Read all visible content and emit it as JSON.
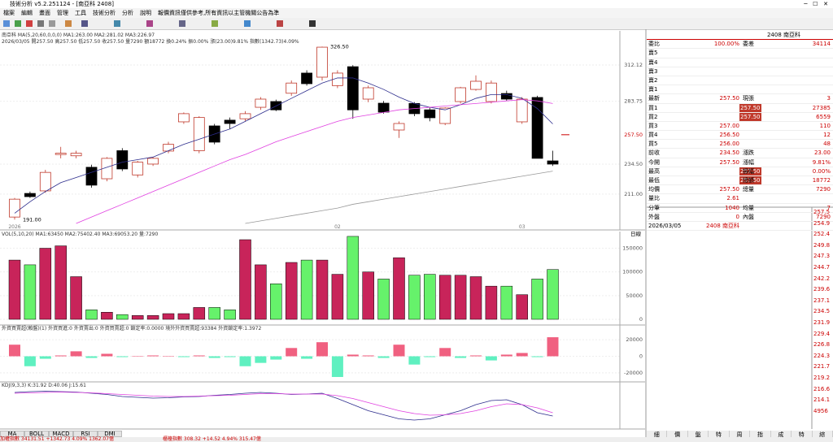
{
  "window_title": "技術分析 v5.2.251124 - [南亞科 2408]",
  "menu": [
    "檔案",
    "編輯",
    "畫面",
    "管理",
    "工具",
    "技術分析",
    "分析",
    "說明"
  ],
  "notice": "報價資訊僅供參考,所有資訊以主管機關公告為準",
  "info": {
    "line1": "南亞科 MA(5,20,60,0,0,0) MA1:263.00 MA2:281.02 MA3:226.97",
    "line2": "2026/03/05 開257.50 高257.50 低257.50 收257.50 量7290 額18772 換0.24% 振0.00% 漲(23.00)9.81% 指數(1342.73)4.09%"
  },
  "price_chart": {
    "ylim": [
      188,
      337.6
    ],
    "yticks": [
      312.12,
      283.75,
      {
        "value": 234.5,
        "label": "234.50"
      },
      {
        "value": 211,
        "label": "211.00"
      }
    ],
    "current": {
      "value": 257.5,
      "label": "257.50"
    },
    "high_label": "326.50",
    "low_label": "191.00",
    "x_labels": [
      "2026",
      null,
      null,
      null,
      null,
      null,
      null,
      null,
      null,
      null,
      null,
      null,
      null,
      null,
      null,
      null,
      null,
      null,
      null,
      null,
      null,
      "02",
      null,
      null,
      null,
      null,
      null,
      null,
      null,
      null,
      null,
      null,
      null,
      "03",
      null,
      null
    ],
    "open": [
      193,
      211.5,
      213.5,
      242,
      241,
      232,
      223,
      245,
      226,
      234.5,
      244.7,
      267.6,
      245,
      264.4,
      268.9,
      270,
      279,
      283.5,
      290,
      305.8,
      302.6,
      296,
      310.8,
      285.4,
      282.2,
      261.2,
      282,
      277,
      266.3,
      283.5,
      293,
      283.5,
      289.8,
      267.6,
      286.7,
      237
    ],
    "high": [
      208,
      213,
      230,
      248,
      245,
      234,
      240,
      247,
      237,
      240,
      252,
      275,
      272,
      266,
      271,
      276,
      287,
      285,
      300,
      308,
      326.5,
      308,
      312,
      296,
      284,
      268,
      283,
      279,
      279,
      295,
      304,
      300,
      292,
      287,
      288,
      245
    ],
    "low": [
      191,
      208,
      212,
      239,
      239,
      216,
      221,
      229,
      224,
      233,
      243,
      266,
      243,
      250,
      262,
      268,
      277,
      276,
      288,
      296,
      300,
      294,
      270,
      283,
      274,
      255,
      272,
      268,
      265,
      282,
      292,
      282,
      284,
      266,
      239,
      233
    ],
    "close": [
      207,
      209,
      228,
      243,
      243,
      218,
      239,
      230.7,
      236,
      239,
      250,
      274,
      271,
      251.7,
      266.3,
      274,
      285.4,
      277,
      298,
      297.5,
      326.1,
      305.8,
      277,
      294.3,
      275.2,
      266.3,
      274,
      270.8,
      278.4,
      294.3,
      299.4,
      298,
      285.4,
      285.4,
      239,
      234.5
    ],
    "up_color": "#c0392b",
    "down_color": "#000000",
    "ma": [
      {
        "color": "#2c2c8c",
        "values": [
          196,
          205,
          213,
          220,
          224,
          228,
          232,
          236,
          238,
          240,
          245,
          250,
          254,
          258,
          262,
          268,
          274,
          280,
          286,
          292,
          298,
          302,
          302,
          298,
          293,
          287,
          282,
          279,
          277,
          281,
          286,
          289,
          289,
          286,
          278,
          266
        ]
      },
      {
        "color": "#e040e0",
        "values": [
          null,
          null,
          null,
          null,
          188,
          193,
          198,
          203,
          208,
          213,
          218,
          223,
          228,
          233,
          238,
          242,
          247,
          252,
          256,
          260,
          264,
          268,
          271,
          273,
          275,
          277,
          278,
          279,
          280,
          281,
          282,
          283,
          284,
          285,
          284,
          282
        ]
      },
      {
        "color": "#999999",
        "values": [
          null,
          null,
          null,
          null,
          null,
          null,
          null,
          null,
          null,
          null,
          null,
          null,
          null,
          null,
          null,
          188,
          190,
          192,
          194,
          196,
          198,
          200,
          203,
          205,
          207,
          209,
          211,
          213,
          215,
          217,
          219,
          221,
          223,
          225,
          227,
          229
        ]
      }
    ]
  },
  "volume_chart": {
    "header": "VOL(5,10,20) MA1:63450 MA2:75402.40 MA3:69053.20 量:7290",
    "period": "日線",
    "ylim": [
      0,
      180000
    ],
    "yticks": [
      150000,
      100000,
      50000,
      0
    ],
    "values": [
      125000,
      115000,
      150000,
      155000,
      90000,
      20000,
      15000,
      10000,
      8000,
      8000,
      12000,
      12000,
      25000,
      25000,
      20000,
      168000,
      115000,
      75000,
      120000,
      125000,
      125000,
      95000,
      175000,
      100000,
      85000,
      130000,
      93000,
      95000,
      93000,
      93000,
      90000,
      70000,
      70000,
      52000,
      85000,
      105000
    ],
    "up_color": "#c8245a",
    "down_color": "#66f26b"
  },
  "foreign_chart": {
    "header": "外資買賣超(賴盤)(1) 外資買進:0 外資賣出:0 外資買賣超:0 鎖定率:0.0000 境外外資買賣超:93384 外資鎖定率:1.3972",
    "ylim": [
      -26000,
      26000
    ],
    "yticks": [
      20000,
      0,
      -20000
    ],
    "values": [
      14000,
      -12000,
      -3000,
      1000,
      6000,
      -2000,
      3000,
      -1000,
      0,
      1000,
      0,
      -1000,
      1000,
      -2000,
      -1000,
      -12000,
      -8000,
      -4000,
      10000,
      -3000,
      17000,
      -25000,
      2000,
      1000,
      -2000,
      14000,
      -10000,
      -1000,
      10000,
      -2000,
      1000,
      -5000,
      2000,
      4000,
      -1000,
      23000
    ],
    "pos_color": "#f06080",
    "neg_color": "#5ff0c0"
  },
  "kd_chart": {
    "header": "KDJ(9,3,3) K:31.92 D:40.06 J:15.61",
    "ylim": [
      0,
      100
    ],
    "series": [
      {
        "color": "#2c2c8c",
        "values": [
          90,
          92,
          93,
          92,
          91,
          88,
          85,
          80,
          78,
          76,
          77,
          79,
          80,
          83,
          85,
          88,
          90,
          88,
          85,
          86,
          88,
          75,
          60,
          45,
          35,
          25,
          22,
          25,
          35,
          45,
          60,
          70,
          72,
          60,
          40,
          32
        ]
      },
      {
        "color": "#e040e0",
        "values": [
          88,
          89,
          90,
          91,
          90,
          89,
          87,
          85,
          83,
          81,
          80,
          80,
          81,
          82,
          83,
          85,
          87,
          87,
          86,
          86,
          86,
          82,
          75,
          65,
          55,
          45,
          38,
          34,
          35,
          38,
          45,
          55,
          62,
          60,
          52,
          40
        ]
      }
    ]
  },
  "indicator_tabs": [
    "MA",
    "BOLL",
    "MACD",
    "RSI",
    "DMI"
  ],
  "quote": {
    "header": "2408 南亞科",
    "rows": [
      {
        "l": "委比",
        "v": "100.00%",
        "l2": "委差",
        "v2": "34114"
      },
      {
        "l": "賣5"
      },
      {
        "l": "賣4"
      },
      {
        "l": "賣3"
      },
      {
        "l": "賣2"
      },
      {
        "l": "賣1"
      },
      {
        "l": "最新",
        "v": "257.50",
        "l2": "現張",
        "v2": "3"
      },
      {
        "l": "買1",
        "v": "257.50",
        "hl": true,
        "v2": "27385"
      },
      {
        "l": "買2",
        "v": "257.50",
        "hl": true,
        "v2": "6559"
      },
      {
        "l": "買3",
        "v": "257.00",
        "v2": "110"
      },
      {
        "l": "買4",
        "v": "256.50",
        "v2": "12"
      },
      {
        "l": "買5",
        "v": "256.00",
        "v2": "48"
      },
      {
        "l": "前收",
        "v": "234.50",
        "l2": "漲跌",
        "v2": "23.00"
      },
      {
        "l": "今開",
        "v": "257.50",
        "l2": "漲幅",
        "v2": "9.81%"
      },
      {
        "l": "最高",
        "v": "257.50",
        "hl": true,
        "l2": "振幅",
        "v2": "0.00%"
      },
      {
        "l": "最低",
        "v": "257.50",
        "hl": true,
        "l2": "總額",
        "v2": "18772"
      },
      {
        "l": "均價",
        "v": "257.50",
        "l2": "總量",
        "v2": "7290"
      },
      {
        "l": "量比",
        "v": "2.61"
      },
      {
        "l": "分筆",
        "v": "1040",
        "l2": "均量",
        "v2": "7"
      },
      {
        "l": "外盤",
        "v": "0",
        "l2": "內盤",
        "v2": "7290"
      },
      {
        "l": "2026/03/05",
        "v": "2408 南亞科"
      }
    ]
  },
  "mini_axis": [
    "257.5",
    "254.9",
    "252.4",
    "249.8",
    "247.3",
    "244.7",
    "242.2",
    "239.6",
    "237.1",
    "234.5",
    "231.9",
    "229.4",
    "226.8",
    "224.3",
    "221.7",
    "219.2",
    "216.6",
    "214.1",
    "4956"
  ],
  "quote_tabs": [
    "細",
    "價",
    "盤",
    "特",
    "周",
    "指",
    "成",
    "特",
    "綜"
  ],
  "status": [
    "加權指數 34131.51 +1342.73 4.09% 1362.07億",
    "櫃檯指數 308.32 +14.52 4.94% 315.47億"
  ]
}
